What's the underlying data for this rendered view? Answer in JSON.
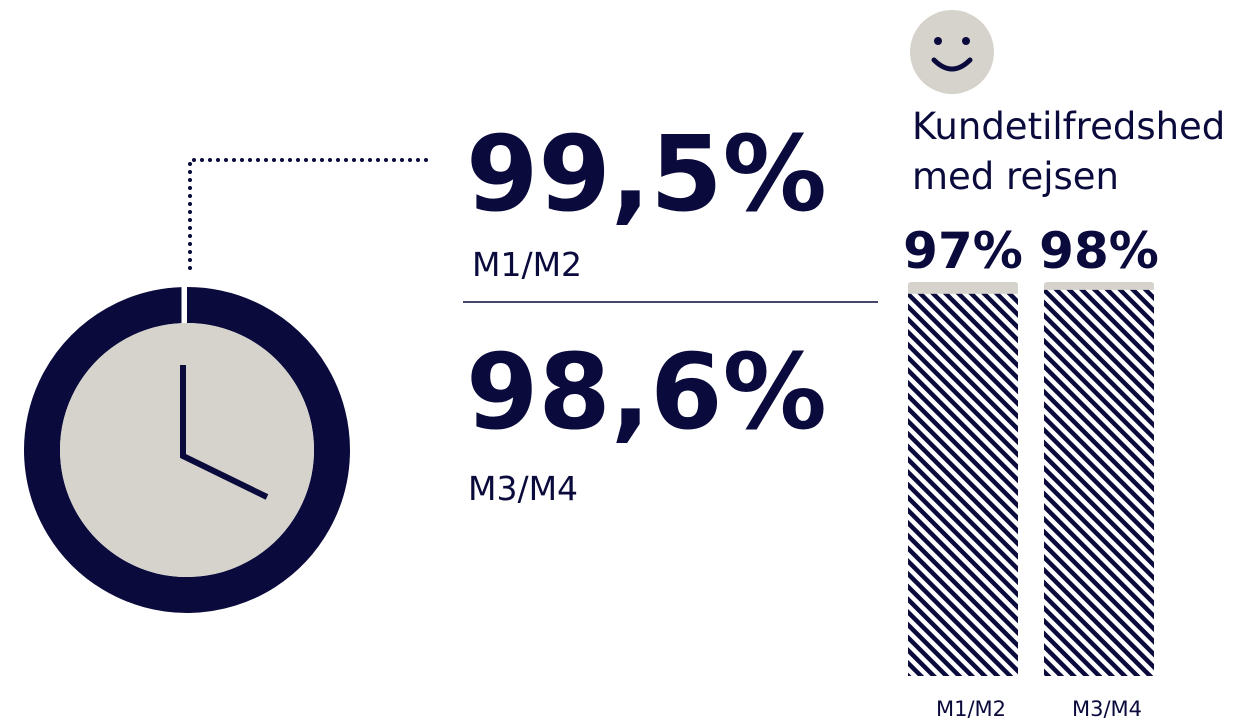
{
  "chart_data": [
    {
      "type": "pie",
      "categories": [
        "M1/M2",
        "M3/M4"
      ],
      "values": [
        99.5,
        98.6
      ],
      "value_labels": [
        "99,5%",
        "98,6%"
      ],
      "color": "#0a0a3c"
    },
    {
      "type": "bar",
      "title": "Kundetilfredshed med rejsen",
      "categories": [
        "M1/M2",
        "M3/M4"
      ],
      "values": [
        97,
        98
      ],
      "value_labels": [
        "97%",
        "98%"
      ],
      "ylim": [
        0,
        100
      ],
      "color": "#0a0a3c"
    }
  ]
}
